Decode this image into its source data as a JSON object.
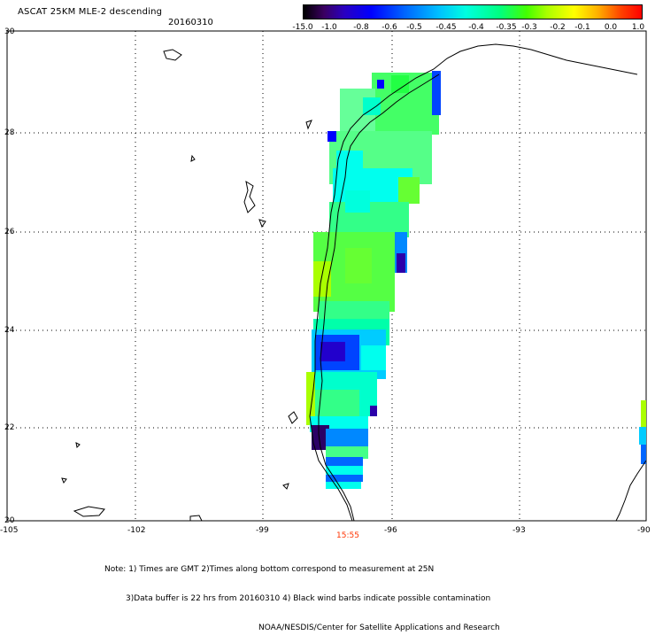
{
  "header": {
    "title": "ASCAT 25KM MLE-2 descending",
    "date": "20160310"
  },
  "colorbar": {
    "labels": [
      "-15.0",
      "-1.0",
      "-0.8",
      "-0.6",
      "-0.5",
      "-0.45",
      "-0.4",
      "-0.35",
      "-0.3",
      "-0.2",
      "-0.1",
      "0.0",
      "1.0"
    ]
  },
  "axes": {
    "lat_labels": [
      "30",
      "28",
      "26",
      "24",
      "22",
      "20"
    ],
    "lon_labels": [
      "-105",
      "-102",
      "-99",
      "-96",
      "-93",
      "-90"
    ]
  },
  "time_label": "15:55",
  "notes": {
    "line1": "Note: 1) Times are GMT 2)Times along bottom correspond to measurement at 25N",
    "line2": "3)Data buffer is 22 hrs from 20160310 4) Black wind barbs indicate possible contamination",
    "line3": "NOAA/NESDIS/Center for Satellite Applications and Research"
  },
  "colors": {
    "swath_main": "#33ff66",
    "swath_light": "#55ff99",
    "swath_cyan": "#00ffee",
    "swath_blue": "#0055ff",
    "swath_dark": "#2b00aa",
    "swath_yellowgreen": "#aaff00",
    "coastline": "#000000"
  }
}
